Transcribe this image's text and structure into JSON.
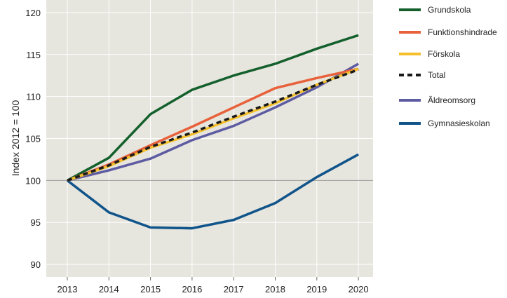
{
  "chart_data": {
    "type": "line",
    "ylabel": "Index 2012 = 100",
    "xlabel": "",
    "title": "",
    "x": [
      "2013",
      "2014",
      "2015",
      "2016",
      "2017",
      "2018",
      "2019",
      "2020"
    ],
    "ylim": [
      88.5,
      121.5
    ],
    "yticks": [
      90,
      95,
      100,
      105,
      110,
      115,
      120
    ],
    "reference_line": 100,
    "grid": "on",
    "legend_placement": "right",
    "background": "#e6e5de",
    "series": [
      {
        "name": "Grundskola",
        "color": "#14602c",
        "dashed": false,
        "values": [
          100,
          102.7,
          107.9,
          110.8,
          112.5,
          113.9,
          115.7,
          117.3
        ]
      },
      {
        "name": "Funktionshindrade",
        "color": "#e8613a",
        "dashed": false,
        "values": [
          100,
          101.9,
          104.2,
          106.4,
          108.7,
          111.0,
          112.2,
          113.3
        ]
      },
      {
        "name": "Förskola",
        "color": "#f5c02e",
        "dashed": false,
        "values": [
          100,
          101.7,
          103.9,
          105.5,
          107.4,
          109.2,
          111.4,
          113.3
        ]
      },
      {
        "name": "Total",
        "color": "#1a1a1a",
        "dashed": true,
        "values": [
          100,
          101.8,
          104.0,
          105.7,
          107.6,
          109.4,
          111.4,
          113.2
        ]
      },
      {
        "name": "Äldreomsorg",
        "color": "#5d5ba1",
        "dashed": false,
        "values": [
          100,
          101.2,
          102.6,
          104.8,
          106.5,
          108.7,
          111.1,
          113.9
        ]
      },
      {
        "name": "Gymnasieskolan",
        "color": "#10548a",
        "dashed": false,
        "values": [
          100,
          96.2,
          94.4,
          94.3,
          95.3,
          97.3,
          100.4,
          103.1
        ]
      }
    ]
  }
}
